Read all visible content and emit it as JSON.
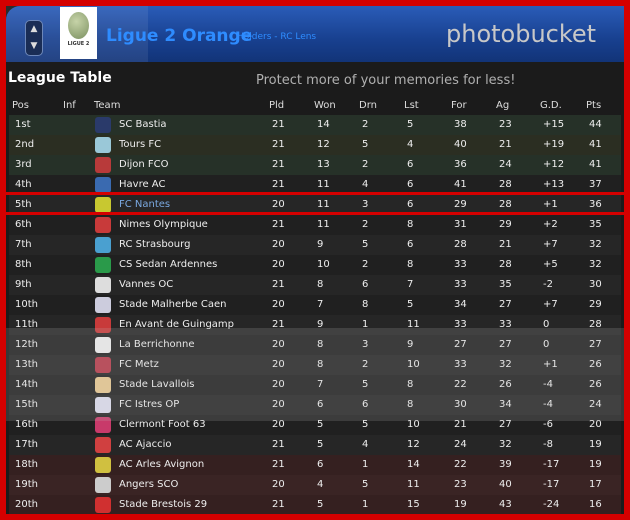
{
  "header": {
    "title": "Ligue 2 Orange",
    "subtitle": "Holders - RC Lens",
    "logo_text": "LIGUE 2",
    "up": "▲",
    "down": "▼"
  },
  "section_title": "League Table",
  "columns": [
    "Pos",
    "Inf",
    "Team",
    "Pld",
    "Won",
    "Drn",
    "Lst",
    "For",
    "Ag",
    "G.D.",
    "Pts"
  ],
  "highlight_color": "#d40000",
  "rows": [
    {
      "pos": "1st",
      "team": "SC Bastia",
      "pld": "21",
      "won": "14",
      "drn": "2",
      "lst": "5",
      "for": "38",
      "ag": "23",
      "gd": "+15",
      "pts": "44",
      "bg": "#263128",
      "badge": "#2a3a6a"
    },
    {
      "pos": "2nd",
      "team": "Tours FC",
      "pld": "21",
      "won": "12",
      "drn": "5",
      "lst": "4",
      "for": "40",
      "ag": "21",
      "gd": "+19",
      "pts": "41",
      "bg": "#2b2e22",
      "badge": "#9ac8d8"
    },
    {
      "pos": "3rd",
      "team": "Dijon FCO",
      "pld": "21",
      "won": "13",
      "drn": "2",
      "lst": "6",
      "for": "36",
      "ag": "24",
      "gd": "+12",
      "pts": "41",
      "bg": "#263128",
      "badge": "#b83a3a"
    },
    {
      "pos": "4th",
      "team": "Havre AC",
      "pld": "21",
      "won": "11",
      "drn": "4",
      "lst": "6",
      "for": "41",
      "ag": "28",
      "gd": "+13",
      "pts": "37",
      "bg": "#202020",
      "badge": "#3a6ab0"
    },
    {
      "pos": "5th",
      "team": "FC Nantes",
      "pld": "20",
      "won": "11",
      "drn": "3",
      "lst": "6",
      "for": "29",
      "ag": "28",
      "gd": "+1",
      "pts": "36",
      "bg": "#262626",
      "badge": "#c8c830",
      "selected": true
    },
    {
      "pos": "6th",
      "team": "Nimes Olympique",
      "pld": "21",
      "won": "11",
      "drn": "2",
      "lst": "8",
      "for": "31",
      "ag": "29",
      "gd": "+2",
      "pts": "35",
      "bg": "#202020",
      "badge": "#c83a3a"
    },
    {
      "pos": "7th",
      "team": "RC Strasbourg",
      "pld": "20",
      "won": "9",
      "drn": "5",
      "lst": "6",
      "for": "28",
      "ag": "21",
      "gd": "+7",
      "pts": "32",
      "bg": "#262626",
      "badge": "#4aa0d0"
    },
    {
      "pos": "8th",
      "team": "CS Sedan Ardennes",
      "pld": "20",
      "won": "10",
      "drn": "2",
      "lst": "8",
      "for": "33",
      "ag": "28",
      "gd": "+5",
      "pts": "32",
      "bg": "#202020",
      "badge": "#2a9a4a"
    },
    {
      "pos": "9th",
      "team": "Vannes OC",
      "pld": "21",
      "won": "8",
      "drn": "6",
      "lst": "7",
      "for": "33",
      "ag": "35",
      "gd": "-2",
      "pts": "30",
      "bg": "#262626",
      "badge": "#dddddd"
    },
    {
      "pos": "10th",
      "team": "Stade Malherbe Caen",
      "pld": "20",
      "won": "7",
      "drn": "8",
      "lst": "5",
      "for": "34",
      "ag": "27",
      "gd": "+7",
      "pts": "29",
      "bg": "#202020",
      "badge": "#ccccdd"
    },
    {
      "pos": "11th",
      "team": "En Avant de Guingamp",
      "pld": "21",
      "won": "9",
      "drn": "1",
      "lst": "11",
      "for": "33",
      "ag": "33",
      "gd": "0",
      "pts": "28",
      "bg": "#262626",
      "badge": "#c83a3a"
    },
    {
      "pos": "12th",
      "team": "La Berrichonne",
      "pld": "20",
      "won": "8",
      "drn": "3",
      "lst": "9",
      "for": "27",
      "ag": "27",
      "gd": "0",
      "pts": "27",
      "bg": "#202020",
      "badge": "#eeeeee"
    },
    {
      "pos": "13th",
      "team": "FC Metz",
      "pld": "20",
      "won": "8",
      "drn": "2",
      "lst": "10",
      "for": "33",
      "ag": "32",
      "gd": "+1",
      "pts": "26",
      "bg": "#262626",
      "badge": "#b83a4a"
    },
    {
      "pos": "14th",
      "team": "Stade Lavallois",
      "pld": "20",
      "won": "7",
      "drn": "5",
      "lst": "8",
      "for": "22",
      "ag": "26",
      "gd": "-4",
      "pts": "26",
      "bg": "#202020",
      "badge": "#e8c890"
    },
    {
      "pos": "15th",
      "team": "FC Istres OP",
      "pld": "20",
      "won": "6",
      "drn": "6",
      "lst": "8",
      "for": "30",
      "ag": "34",
      "gd": "-4",
      "pts": "24",
      "bg": "#262626",
      "badge": "#ddddee"
    },
    {
      "pos": "16th",
      "team": "Clermont Foot 63",
      "pld": "20",
      "won": "5",
      "drn": "5",
      "lst": "10",
      "for": "21",
      "ag": "27",
      "gd": "-6",
      "pts": "20",
      "bg": "#202020",
      "badge": "#c83a6a"
    },
    {
      "pos": "17th",
      "team": "AC Ajaccio",
      "pld": "21",
      "won": "5",
      "drn": "4",
      "lst": "12",
      "for": "24",
      "ag": "32",
      "gd": "-8",
      "pts": "19",
      "bg": "#262626",
      "badge": "#d04040"
    },
    {
      "pos": "18th",
      "team": "AC Arles Avignon",
      "pld": "21",
      "won": "6",
      "drn": "1",
      "lst": "14",
      "for": "22",
      "ag": "39",
      "gd": "-17",
      "pts": "19",
      "bg": "#352020",
      "badge": "#d0c040"
    },
    {
      "pos": "19th",
      "team": "Angers SCO",
      "pld": "20",
      "won": "4",
      "drn": "5",
      "lst": "11",
      "for": "23",
      "ag": "40",
      "gd": "-17",
      "pts": "17",
      "bg": "#3a2424",
      "badge": "#cccccc"
    },
    {
      "pos": "20th",
      "team": "Stade Brestois 29",
      "pld": "21",
      "won": "5",
      "drn": "1",
      "lst": "15",
      "for": "19",
      "ag": "43",
      "gd": "-24",
      "pts": "16",
      "bg": "#352020",
      "badge": "#d03030"
    }
  ],
  "watermark": {
    "brand": "photobucket",
    "slogan": "Protect more of your memories for less!"
  }
}
